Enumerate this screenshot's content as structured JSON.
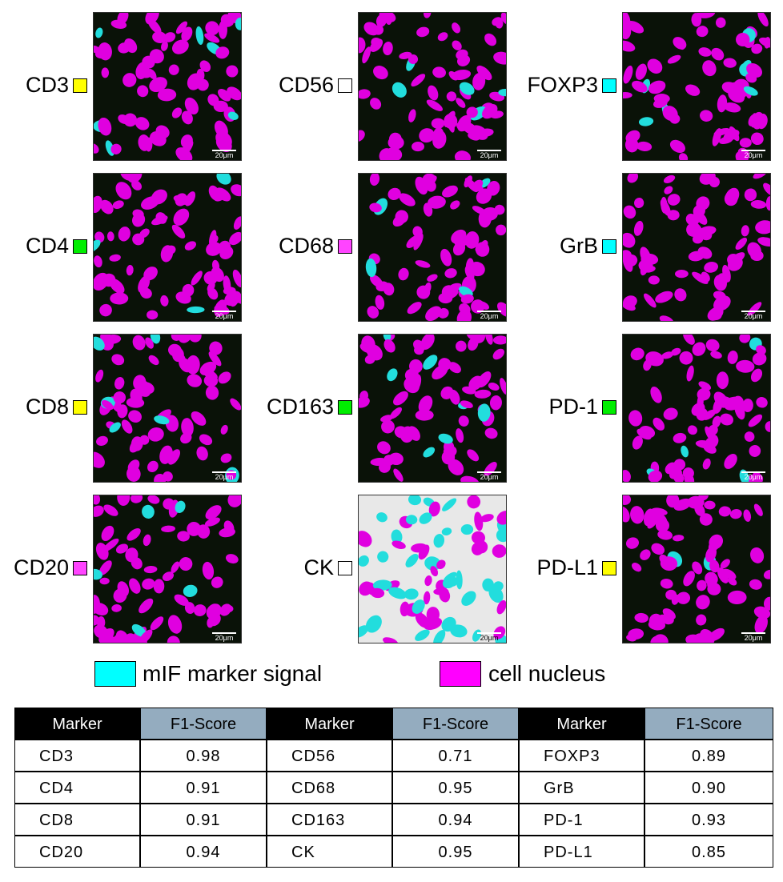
{
  "panels": [
    {
      "label": "CD3",
      "swatch": "#ffff00",
      "scale_bar": "20μm"
    },
    {
      "label": "CD56",
      "swatch": "#ffffff",
      "scale_bar": "20μm"
    },
    {
      "label": "FOXP3",
      "swatch": "#00ffff",
      "scale_bar": "20μm"
    },
    {
      "label": "CD4",
      "swatch": "#00ee00",
      "scale_bar": "20μm"
    },
    {
      "label": "CD68",
      "swatch": "#ff44ff",
      "scale_bar": "20μm"
    },
    {
      "label": "GrB",
      "swatch": "#00ffff",
      "scale_bar": "20μm"
    },
    {
      "label": "CD8",
      "swatch": "#ffff00",
      "scale_bar": "20μm"
    },
    {
      "label": "CD163",
      "swatch": "#00ee00",
      "scale_bar": "20μm"
    },
    {
      "label": "PD-1",
      "swatch": "#00ee00",
      "scale_bar": "20μm"
    },
    {
      "label": "CD20",
      "swatch": "#ff44ff",
      "scale_bar": "20μm"
    },
    {
      "label": "CK",
      "swatch": "#ffffff",
      "scale_bar": "20μm"
    },
    {
      "label": "PD-L1",
      "swatch": "#ffff00",
      "scale_bar": "20μm"
    }
  ],
  "legend": [
    {
      "label": "mIF marker signal",
      "color": "#00ffff"
    },
    {
      "label": "cell nucleus",
      "color": "#ff00ff"
    }
  ],
  "table": {
    "header": [
      "Marker",
      "F1-Score",
      "Marker",
      "F1-Score",
      "Marker",
      "F1-Score"
    ],
    "rows": [
      [
        "CD3",
        "0.98",
        "CD56",
        "0.71",
        "FOXP3",
        "0.89"
      ],
      [
        "CD4",
        "0.91",
        "CD68",
        "0.95",
        "GrB",
        "0.90"
      ],
      [
        "CD8",
        "0.91",
        "CD163",
        "0.94",
        "PD-1",
        "0.93"
      ],
      [
        "CD20",
        "0.94",
        "CK",
        "0.95",
        "PD-L1",
        "0.85"
      ]
    ]
  }
}
